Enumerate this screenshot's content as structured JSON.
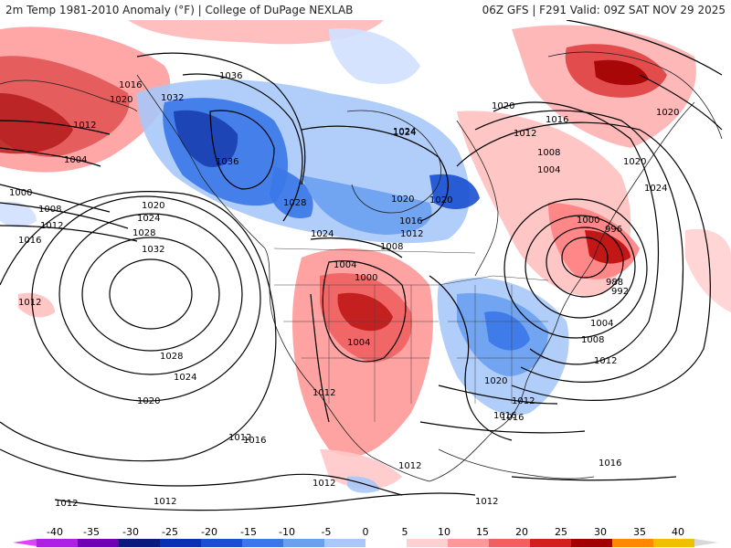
{
  "header": {
    "left_title": "2m Temp 1981-2010 Anomaly (°F) | College of DuPage NEXLAB",
    "right_title": "06Z GFS | F291 Valid: 09Z SAT NOV 29 2025"
  },
  "colorbar": {
    "ticks": [
      "-40",
      "-35",
      "-30",
      "-25",
      "-20",
      "-15",
      "-10",
      "-5",
      "0",
      "5",
      "10",
      "15",
      "20",
      "25",
      "30",
      "35",
      "40"
    ],
    "colors": [
      "#e040ff",
      "#b020e0",
      "#7000b0",
      "#0a1a80",
      "#0a30b0",
      "#1a50d0",
      "#3a78e8",
      "#6aa0f0",
      "#a8c8f8",
      "#ffffff",
      "#ffd0d0",
      "#ff9898",
      "#f06060",
      "#d02020",
      "#a00000",
      "#ff8800",
      "#f0c000",
      "#d8d8d8"
    ]
  },
  "map": {
    "pressure_labels": [
      "1036",
      "1016",
      "1020",
      "1032",
      "1012",
      "1004",
      "1000",
      "1008",
      "1012",
      "1016",
      "1020",
      "1024",
      "1028",
      "1032",
      "1036",
      "1028",
      "1024",
      "1024",
      "1020",
      "1016",
      "1012",
      "1008",
      "1004",
      "1000",
      "1004",
      "1012",
      "1008",
      "1004",
      "1012",
      "1016",
      "1020",
      "1024",
      "1028",
      "1024",
      "1020",
      "1016",
      "1012",
      "1012",
      "1012",
      "1020",
      "1016",
      "1012",
      "1008",
      "1004",
      "1012",
      "1000",
      "996",
      "988",
      "992",
      "1020",
      "1016",
      "1012",
      "1024",
      "1020",
      "1012",
      "1012",
      "1016",
      "1012",
      "1020"
    ]
  }
}
